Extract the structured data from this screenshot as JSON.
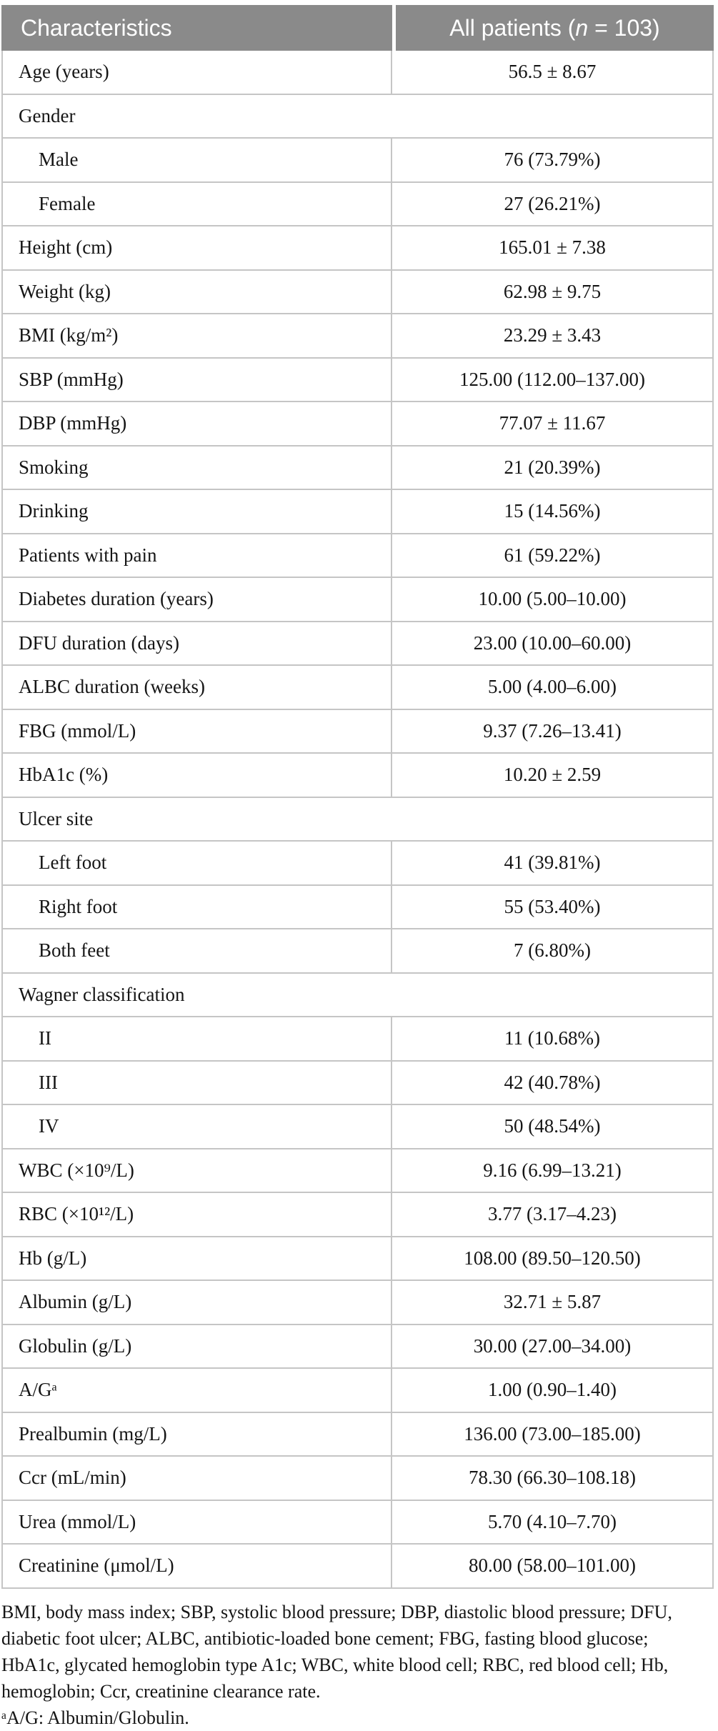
{
  "table": {
    "header": {
      "characteristics": "Characteristics",
      "all_patients_prefix": "All patients (",
      "all_patients_n": "n",
      "all_patients_suffix": " = 103)"
    },
    "rows": [
      {
        "label": "Age (years)",
        "value": "56.5 ± 8.67"
      },
      {
        "label": "Gender",
        "group": true
      },
      {
        "label": "Male",
        "value": "76 (73.79%)",
        "indent": true
      },
      {
        "label": "Female",
        "value": "27 (26.21%)",
        "indent": true
      },
      {
        "label": "Height (cm)",
        "value": "165.01 ± 7.38"
      },
      {
        "label": "Weight (kg)",
        "value": "62.98 ± 9.75"
      },
      {
        "label": "BMI (kg/m²)",
        "value": "23.29 ± 3.43"
      },
      {
        "label": "SBP (mmHg)",
        "value": "125.00 (112.00–137.00)"
      },
      {
        "label": "DBP (mmHg)",
        "value": "77.07 ± 11.67"
      },
      {
        "label": "Smoking",
        "value": "21 (20.39%)"
      },
      {
        "label": "Drinking",
        "value": "15 (14.56%)"
      },
      {
        "label": "Patients with pain",
        "value": "61 (59.22%)"
      },
      {
        "label": "Diabetes duration (years)",
        "value": "10.00 (5.00–10.00)"
      },
      {
        "label": "DFU duration (days)",
        "value": "23.00 (10.00–60.00)"
      },
      {
        "label": "ALBC duration (weeks)",
        "value": "5.00 (4.00–6.00)"
      },
      {
        "label": "FBG (mmol/L)",
        "value": "9.37 (7.26–13.41)"
      },
      {
        "label": "HbA1c (%)",
        "value": "10.20 ± 2.59"
      },
      {
        "label": "Ulcer site",
        "group": true
      },
      {
        "label": "Left foot",
        "value": "41 (39.81%)",
        "indent": true
      },
      {
        "label": "Right foot",
        "value": "55 (53.40%)",
        "indent": true
      },
      {
        "label": "Both feet",
        "value": "7 (6.80%)",
        "indent": true
      },
      {
        "label": "Wagner classification",
        "group": true
      },
      {
        "label": "II",
        "value": "11 (10.68%)",
        "indent": true
      },
      {
        "label": "III",
        "value": "42 (40.78%)",
        "indent": true
      },
      {
        "label": "IV",
        "value": "50 (48.54%)",
        "indent": true
      },
      {
        "label": "WBC (×10⁹/L)",
        "value": "9.16 (6.99–13.21)"
      },
      {
        "label": "RBC (×10¹²/L)",
        "value": "3.77 (3.17–4.23)"
      },
      {
        "label": "Hb (g/L)",
        "value": "108.00 (89.50–120.50)"
      },
      {
        "label": "Albumin (g/L)",
        "value": "32.71 ± 5.87"
      },
      {
        "label": "Globulin (g/L)",
        "value": "30.00 (27.00–34.00)"
      },
      {
        "label": "A/Gᵃ",
        "value": "1.00 (0.90–1.40)"
      },
      {
        "label": "Prealbumin (mg/L)",
        "value": "136.00 (73.00–185.00)"
      },
      {
        "label": "Ccr (mL/min)",
        "value": "78.30 (66.30–108.18)"
      },
      {
        "label": "Urea (mmol/L)",
        "value": "5.70 (4.10–7.70)"
      },
      {
        "label": "Creatinine (μmol/L)",
        "value": "80.00 (58.00–101.00)"
      }
    ],
    "footnotes": {
      "lines": [
        "BMI, body mass index; SBP, systolic blood pressure; DBP, diastolic blood pressure; DFU,",
        "diabetic foot ulcer; ALBC, antibiotic-loaded bone cement; FBG, fasting blood glucose;",
        "HbA1c, glycated hemoglobin type A1c; WBC, white blood cell; RBC, red blood cell; Hb,",
        "hemoglobin; Ccr, creatinine clearance rate.",
        "ᵃA/G: Albumin/Globulin."
      ]
    },
    "colors": {
      "header_bg": "#8a8a8a",
      "header_text": "#ffffff",
      "border": "#c5c5c5",
      "body_text": "#151515"
    }
  }
}
